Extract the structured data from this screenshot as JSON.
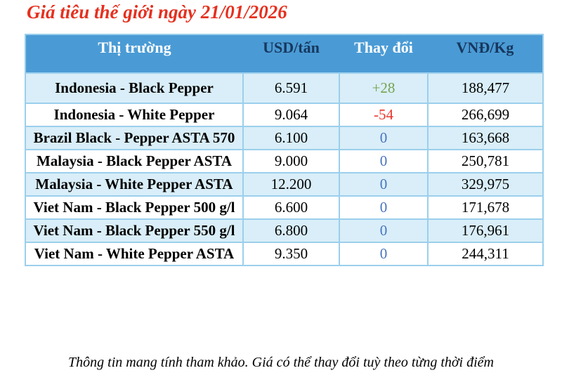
{
  "title": "Giá tiêu thế giới ngày 21/01/2026",
  "table": {
    "columns": [
      {
        "label": "Thị trường"
      },
      {
        "label": "USD/tấn"
      },
      {
        "label": "Thay đổi"
      },
      {
        "label": "VNĐ/Kg"
      }
    ],
    "rows": [
      {
        "market": "Indonesia - Black Pepper",
        "usd": "6.591",
        "change": "+28",
        "change_dir": "up",
        "vnd": "188,477"
      },
      {
        "market": "Indonesia - White Pepper",
        "usd": "9.064",
        "change": "-54",
        "change_dir": "down",
        "vnd": "266,699"
      },
      {
        "market": "Brazil Black - Pepper ASTA 570",
        "usd": "6.100",
        "change": "0",
        "change_dir": "zero",
        "vnd": "163,668"
      },
      {
        "market": "Malaysia - Black Pepper ASTA",
        "usd": "9.000",
        "change": "0",
        "change_dir": "zero",
        "vnd": "250,781"
      },
      {
        "market": "Malaysia - White Pepper ASTA",
        "usd": "12.200",
        "change": "0",
        "change_dir": "zero",
        "vnd": "329,975"
      },
      {
        "market": "Viet Nam - Black Pepper 500 g/l",
        "usd": "6.600",
        "change": "0",
        "change_dir": "zero",
        "vnd": "171,678"
      },
      {
        "market": "Viet Nam - Black Pepper 550 g/l",
        "usd": "6.800",
        "change": "0",
        "change_dir": "zero",
        "vnd": "176,961"
      },
      {
        "market": "Viet Nam - White Pepper ASTA",
        "usd": "9.350",
        "change": "0",
        "change_dir": "zero",
        "vnd": "244,311"
      }
    ]
  },
  "footer_note": "Thông tin mang tính tham khảo. Giá có thể thay đổi tuỳ theo từng thời điểm",
  "colors": {
    "title_red": "#e5301f",
    "header_bg": "#4a9bd5",
    "header_text_light": "#ffffff",
    "header_text_dark": "#17375e",
    "row_alt_bg": "#d9eef8",
    "row_bg": "#ffffff",
    "border": "#9bcfec",
    "change_up": "#76a24e",
    "change_down": "#ea352a",
    "change_zero": "#4674c1",
    "text": "#000000"
  }
}
